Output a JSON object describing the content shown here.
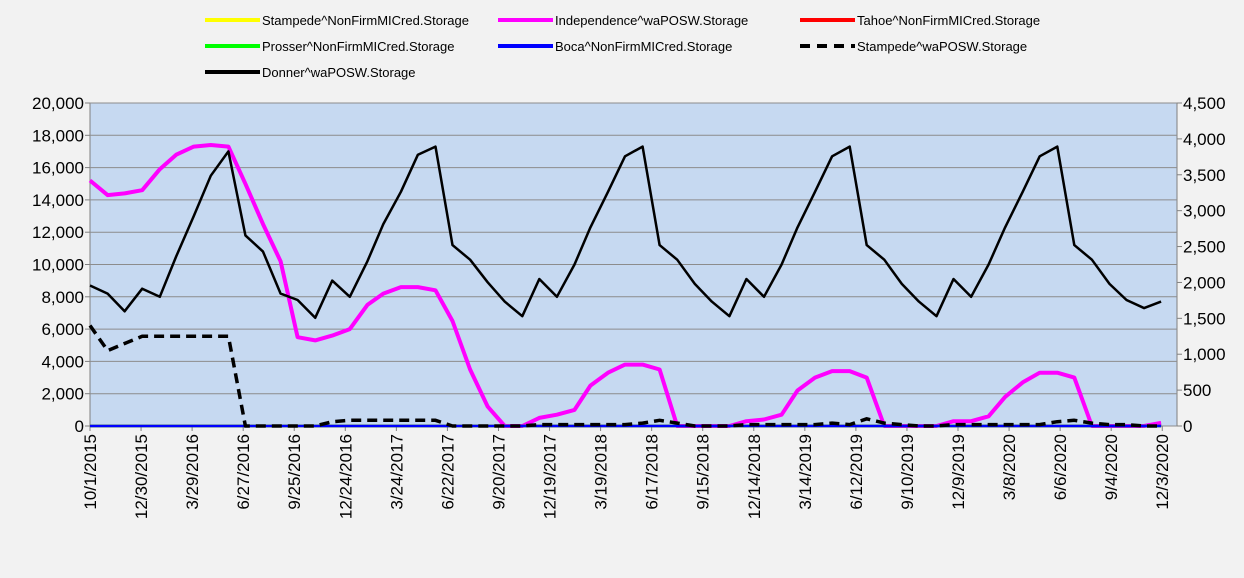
{
  "chart_data": {
    "type": "line",
    "x": [
      "10/1/2015",
      "11/1/2015",
      "12/1/2015",
      "1/1/2016",
      "2/1/2016",
      "3/1/2016",
      "4/1/2016",
      "5/1/2016",
      "6/1/2016",
      "7/1/2016",
      "8/1/2016",
      "9/1/2016",
      "10/1/2016",
      "11/1/2016",
      "12/1/2016",
      "1/1/2017",
      "2/1/2017",
      "3/1/2017",
      "4/1/2017",
      "5/1/2017",
      "6/1/2017",
      "7/1/2017",
      "8/1/2017",
      "9/1/2017",
      "10/1/2017",
      "11/1/2017",
      "12/1/2017",
      "1/1/2018",
      "2/1/2018",
      "3/1/2018",
      "4/1/2018",
      "5/1/2018",
      "6/1/2018",
      "7/1/2018",
      "8/1/2018",
      "9/1/2018",
      "10/1/2018",
      "11/1/2018",
      "12/1/2018",
      "1/1/2019",
      "2/1/2019",
      "3/1/2019",
      "4/1/2019",
      "5/1/2019",
      "6/1/2019",
      "7/1/2019",
      "8/1/2019",
      "9/1/2019",
      "10/1/2019",
      "11/1/2019",
      "12/1/2019",
      "1/1/2020",
      "2/1/2020",
      "3/1/2020",
      "4/1/2020",
      "5/1/2020",
      "6/1/2020",
      "7/1/2020",
      "8/1/2020",
      "9/1/2020",
      "10/1/2020",
      "11/1/2020",
      "12/1/2020"
    ],
    "xlim": [
      "10/1/2015",
      "12/29/2020"
    ],
    "xticks": [
      "10/1/2015",
      "12/30/2015",
      "3/29/2016",
      "6/27/2016",
      "9/25/2016",
      "12/24/2016",
      "3/24/2017",
      "6/22/2017",
      "9/20/2017",
      "12/19/2017",
      "3/19/2018",
      "6/17/2018",
      "9/15/2018",
      "12/14/2018",
      "3/14/2019",
      "6/12/2019",
      "9/10/2019",
      "12/9/2019",
      "3/8/2020",
      "6/6/2020",
      "9/4/2020",
      "12/3/2020"
    ],
    "ylim": [
      0,
      20000
    ],
    "yticks": [
      0,
      {
        "value": 2000,
        "label": "2,000"
      },
      {
        "value": 4000,
        "label": "4,000"
      },
      {
        "value": 6000,
        "label": "6,000"
      },
      {
        "value": 8000,
        "label": "8,000"
      },
      {
        "value": 10000,
        "label": "10,000"
      },
      {
        "value": 12000,
        "label": "12,000"
      },
      {
        "value": 14000,
        "label": "14,000"
      },
      {
        "value": 16000,
        "label": "16,000"
      },
      {
        "value": 18000,
        "label": "18,000"
      },
      {
        "value": 20000,
        "label": "20,000"
      }
    ],
    "y2lim": [
      0,
      4500
    ],
    "y2ticks": [
      0,
      500,
      {
        "value": 1000,
        "label": "1,000"
      },
      {
        "value": 1500,
        "label": "1,500"
      },
      {
        "value": 2000,
        "label": "2,000"
      },
      {
        "value": 2500,
        "label": "2,500"
      },
      {
        "value": 3000,
        "label": "3,000"
      },
      {
        "value": 3500,
        "label": "3,500"
      },
      {
        "value": 4000,
        "label": "4,000"
      },
      {
        "value": 4500,
        "label": "4,500"
      }
    ],
    "grid": true,
    "legend": "top",
    "series": [
      {
        "name": "Stampede^NonFirmMICred.Storage",
        "color": "#ffff00",
        "values": [
          0,
          0,
          0,
          0,
          0,
          0,
          0,
          0,
          0,
          0,
          0,
          0,
          0,
          0,
          0,
          0,
          0,
          0,
          0,
          0,
          0,
          0,
          0,
          0,
          0,
          0,
          0,
          0,
          0,
          0,
          0,
          0,
          0,
          0,
          0,
          0,
          0,
          0,
          0,
          0,
          0,
          0,
          0,
          0,
          0,
          0,
          0,
          0,
          0,
          0,
          0,
          0,
          0,
          0,
          0,
          0,
          0,
          0,
          0,
          0,
          0,
          0,
          0
        ]
      },
      {
        "name": "Independence^waPOSW.Storage",
        "color": "#ff00ff",
        "values": [
          15200,
          14300,
          14400,
          14600,
          15900,
          16800,
          17300,
          17400,
          17300,
          15000,
          12500,
          10200,
          5500,
          5300,
          5600,
          6000,
          7500,
          8200,
          8600,
          8600,
          8400,
          6500,
          3500,
          1200,
          0,
          0,
          500,
          700,
          1000,
          2500,
          3300,
          3800,
          3800,
          3500,
          0,
          0,
          0,
          0,
          300,
          400,
          700,
          2200,
          3000,
          3400,
          3400,
          3000,
          0,
          0,
          0,
          0,
          300,
          300,
          600,
          1800,
          2700,
          3300,
          3300,
          3000,
          0,
          0,
          0,
          0,
          200
        ]
      },
      {
        "name": "Tahoe^NonFirmMICred.Storage",
        "color": "#ff0000",
        "values": [
          0,
          0,
          0,
          0,
          0,
          0,
          0,
          0,
          0,
          0,
          0,
          0,
          0,
          0,
          0,
          0,
          0,
          0,
          0,
          0,
          0,
          0,
          0,
          0,
          0,
          0,
          0,
          0,
          0,
          0,
          0,
          0,
          0,
          0,
          0,
          0,
          0,
          0,
          0,
          0,
          0,
          0,
          0,
          0,
          0,
          0,
          0,
          0,
          0,
          0,
          0,
          0,
          0,
          0,
          0,
          0,
          0,
          0,
          0,
          0,
          0,
          0,
          0
        ]
      },
      {
        "name": "Prosser^NonFirmMICred.Storage",
        "color": "#00ff00",
        "values": [
          0,
          0,
          0,
          0,
          0,
          0,
          0,
          0,
          0,
          0,
          0,
          0,
          0,
          0,
          0,
          0,
          0,
          0,
          0,
          0,
          0,
          0,
          0,
          0,
          0,
          0,
          0,
          0,
          0,
          0,
          0,
          0,
          0,
          0,
          0,
          0,
          0,
          0,
          0,
          0,
          0,
          0,
          0,
          0,
          0,
          0,
          0,
          0,
          0,
          0,
          0,
          0,
          0,
          0,
          0,
          0,
          0,
          0,
          0,
          0,
          0,
          0,
          0
        ]
      },
      {
        "name": "Boca^NonFirmMICred.Storage",
        "color": "#0000ff",
        "values": [
          0,
          0,
          0,
          0,
          0,
          0,
          0,
          0,
          0,
          0,
          0,
          0,
          0,
          0,
          0,
          0,
          0,
          0,
          0,
          0,
          0,
          0,
          0,
          0,
          0,
          0,
          0,
          0,
          0,
          0,
          0,
          0,
          0,
          0,
          0,
          0,
          0,
          0,
          0,
          0,
          0,
          0,
          0,
          0,
          0,
          0,
          0,
          0,
          0,
          0,
          0,
          0,
          0,
          0,
          0,
          0,
          0,
          0,
          0,
          0,
          0,
          0,
          0
        ]
      },
      {
        "name": "Stampede^waPOSW.Storage",
        "color": "#000000",
        "dashed": true,
        "axis": "y2",
        "values": [
          1400,
          1050,
          1150,
          1250,
          1250,
          1250,
          1250,
          1250,
          1250,
          0,
          0,
          0,
          0,
          0,
          60,
          80,
          80,
          80,
          80,
          80,
          80,
          0,
          0,
          0,
          0,
          0,
          20,
          20,
          20,
          20,
          20,
          20,
          40,
          80,
          40,
          0,
          0,
          0,
          20,
          20,
          20,
          20,
          20,
          40,
          20,
          100,
          40,
          20,
          0,
          0,
          20,
          20,
          20,
          20,
          20,
          20,
          60,
          80,
          40,
          20,
          20,
          0,
          0
        ]
      },
      {
        "name": "Donner^waPOSW.Storage",
        "color": "#000000",
        "values": [
          8700,
          8200,
          7100,
          8500,
          8000,
          10500,
          13000,
          15500,
          17000,
          11800,
          10800,
          8200,
          7800,
          6700,
          9000,
          8000,
          10200,
          12500,
          14500,
          16800,
          17300,
          11200,
          10300,
          8900,
          7700,
          6800,
          9100,
          8000,
          10000,
          12300,
          14500,
          16700,
          17300,
          11200,
          10300,
          8800,
          7700,
          6800,
          9100,
          8000,
          10000,
          12300,
          14500,
          16700,
          17300,
          11200,
          10300,
          8800,
          7700,
          6800,
          9100,
          8000,
          10000,
          12300,
          14500,
          16700,
          17300,
          11200,
          10300,
          8800,
          7800,
          7300,
          7700
        ]
      }
    ]
  }
}
